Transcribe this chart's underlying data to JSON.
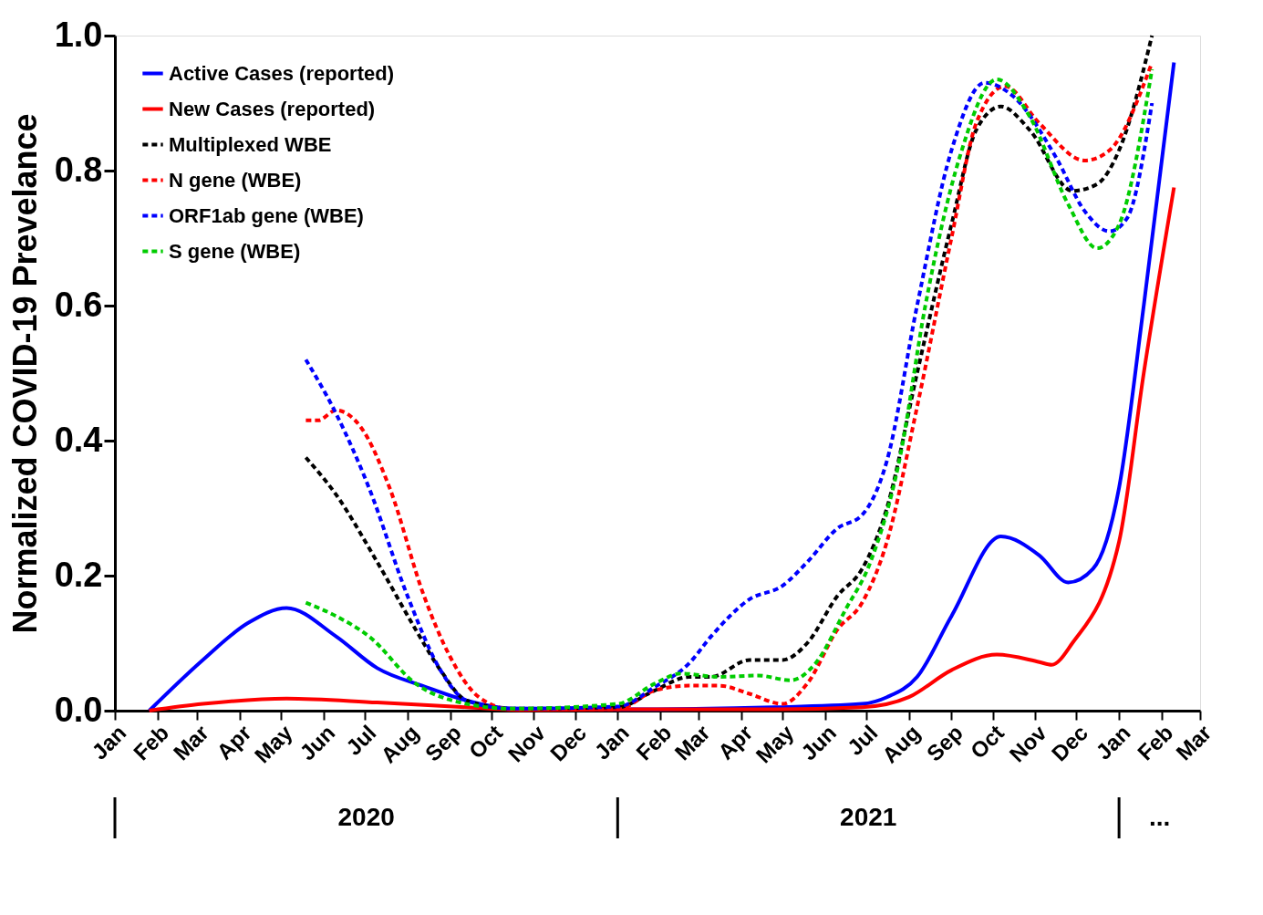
{
  "chart_data": {
    "type": "line",
    "ylabel": "Normalized COVID-19 Prevelance",
    "xlim": [
      "2020-01-01",
      "2022-03-01"
    ],
    "ylim": [
      0,
      1
    ],
    "xticks": [
      {
        "value": "2020-01-01",
        "label": "Jan"
      },
      {
        "value": "2020-02-01",
        "label": "Feb"
      },
      {
        "value": "2020-03-01",
        "label": "Mar"
      },
      {
        "value": "2020-04-01",
        "label": "Apr"
      },
      {
        "value": "2020-05-01",
        "label": "May"
      },
      {
        "value": "2020-06-01",
        "label": "Jun"
      },
      {
        "value": "2020-07-01",
        "label": "Jul"
      },
      {
        "value": "2020-08-01",
        "label": "Aug"
      },
      {
        "value": "2020-09-01",
        "label": "Sep"
      },
      {
        "value": "2020-10-01",
        "label": "Oct"
      },
      {
        "value": "2020-11-01",
        "label": "Nov"
      },
      {
        "value": "2020-12-01",
        "label": "Dec"
      },
      {
        "value": "2021-01-01",
        "label": "Jan"
      },
      {
        "value": "2021-02-01",
        "label": "Feb"
      },
      {
        "value": "2021-03-01",
        "label": "Mar"
      },
      {
        "value": "2021-04-01",
        "label": "Apr"
      },
      {
        "value": "2021-05-01",
        "label": "May"
      },
      {
        "value": "2021-06-01",
        "label": "Jun"
      },
      {
        "value": "2021-07-01",
        "label": "Jul"
      },
      {
        "value": "2021-08-01",
        "label": "Aug"
      },
      {
        "value": "2021-09-01",
        "label": "Sep"
      },
      {
        "value": "2021-10-01",
        "label": "Oct"
      },
      {
        "value": "2021-11-01",
        "label": "Nov"
      },
      {
        "value": "2021-12-01",
        "label": "Dec"
      },
      {
        "value": "2022-01-01",
        "label": "Jan"
      },
      {
        "value": "2022-02-01",
        "label": "Feb"
      },
      {
        "value": "2022-03-01",
        "label": "Mar"
      }
    ],
    "yticks": [
      {
        "value": 0,
        "label": "0.0"
      },
      0.2,
      0.4,
      0.6,
      0.8,
      {
        "value": 1,
        "label": "1.0"
      }
    ],
    "grid": false,
    "legend": "top left",
    "marker": "none",
    "annotations": [
      "2020",
      "2021",
      "..."
    ],
    "series": [
      {
        "name": "Active Cases (reported)",
        "color": "#0000ff",
        "line_style": "solid",
        "x": [
          "2020-01-26",
          "2020-03-05",
          "2020-04-07",
          "2020-05-05",
          "2020-06-10",
          "2020-07-10",
          "2020-08-13",
          "2020-09-13",
          "2020-10-16",
          "2021-01-01",
          "2021-04-25",
          "2021-06-28",
          "2021-07-16",
          "2021-08-07",
          "2021-09-01",
          "2021-10-07",
          "2021-11-04",
          "2021-11-25",
          "2021-12-13",
          "2022-01-01",
          "2022-01-19",
          "2022-02-10"
        ],
        "values": [
          0,
          0.075,
          0.13,
          0.152,
          0.11,
          0.063,
          0.036,
          0.015,
          0.003,
          0.002,
          0.005,
          0.01,
          0.02,
          0.05,
          0.14,
          0.258,
          0.23,
          0.19,
          0.21,
          0.33,
          0.6,
          0.96
        ]
      },
      {
        "name": "New Cases (reported)",
        "color": "#ff0000",
        "line_style": "solid",
        "x": [
          "2020-01-26",
          "2020-03-05",
          "2020-05-05",
          "2020-07-10",
          "2020-09-13",
          "2020-10-28",
          "2021-01-01",
          "2021-04-25",
          "2021-06-28",
          "2021-08-01",
          "2021-09-01",
          "2021-10-04",
          "2021-11-04",
          "2021-11-13",
          "2021-11-28",
          "2022-01-01",
          "2022-01-19",
          "2022-02-10"
        ],
        "values": [
          0,
          0.01,
          0.018,
          0.012,
          0.005,
          0.001,
          0.002,
          0.002,
          0.005,
          0.02,
          0.06,
          0.083,
          0.072,
          0.068,
          0.1,
          0.25,
          0.5,
          0.775
        ]
      },
      {
        "name": "Multiplexed WBE",
        "color": "#000000",
        "line_style": "dashed",
        "x": [
          "2020-05-19",
          "2020-06-10",
          "2020-07-10",
          "2020-08-07",
          "2020-08-25",
          "2020-09-13",
          "2020-10-16",
          "2021-01-01",
          "2021-01-28",
          "2021-02-22",
          "2021-03-10",
          "2021-04-07",
          "2021-05-01",
          "2021-05-19",
          "2021-06-10",
          "2021-06-28",
          "2021-07-16",
          "2021-08-07",
          "2021-09-01",
          "2021-09-19",
          "2021-10-07",
          "2021-10-28",
          "2021-11-28",
          "2021-12-16",
          "2022-01-01",
          "2022-01-25"
        ],
        "values": [
          0.375,
          0.32,
          0.22,
          0.12,
          0.06,
          0.015,
          0.003,
          0.005,
          0.03,
          0.05,
          0.05,
          0.075,
          0.075,
          0.1,
          0.17,
          0.21,
          0.3,
          0.5,
          0.72,
          0.86,
          0.895,
          0.86,
          0.77,
          0.78,
          0.83,
          1.0
        ]
      },
      {
        "name": "N gene (WBE)",
        "color": "#ff0000",
        "line_style": "dashed",
        "x": [
          "2020-05-19",
          "2020-05-28",
          "2020-06-10",
          "2020-06-28",
          "2020-07-19",
          "2020-08-13",
          "2020-09-01",
          "2020-09-22",
          "2020-10-16",
          "2021-01-01",
          "2021-01-28",
          "2021-02-22",
          "2021-03-16",
          "2021-04-07",
          "2021-05-01",
          "2021-05-19",
          "2021-06-10",
          "2021-06-28",
          "2021-07-16",
          "2021-08-07",
          "2021-09-01",
          "2021-09-19",
          "2021-10-10",
          "2021-11-04",
          "2021-12-07",
          "2021-12-25",
          "2022-01-25"
        ],
        "values": [
          0.43,
          0.43,
          0.445,
          0.42,
          0.33,
          0.17,
          0.08,
          0.02,
          0.002,
          0.002,
          0.03,
          0.037,
          0.037,
          0.025,
          0.01,
          0.04,
          0.12,
          0.16,
          0.25,
          0.45,
          0.7,
          0.87,
          0.925,
          0.87,
          0.815,
          0.83,
          0.96
        ]
      },
      {
        "name": "ORF1ab gene (WBE)",
        "color": "#0000ff",
        "line_style": "dashed",
        "x": [
          "2020-05-19",
          "2020-06-10",
          "2020-07-04",
          "2020-08-01",
          "2020-08-25",
          "2020-09-13",
          "2020-10-16",
          "2021-01-01",
          "2021-01-28",
          "2021-02-22",
          "2021-03-10",
          "2021-04-07",
          "2021-05-01",
          "2021-05-19",
          "2021-06-10",
          "2021-06-28",
          "2021-07-16",
          "2021-08-07",
          "2021-09-01",
          "2021-09-25",
          "2021-10-16",
          "2021-11-16",
          "2021-12-07",
          "2021-12-25",
          "2022-01-07",
          "2022-01-25"
        ],
        "values": [
          0.52,
          0.44,
          0.33,
          0.17,
          0.06,
          0.015,
          0.003,
          0.006,
          0.035,
          0.07,
          0.11,
          0.165,
          0.185,
          0.22,
          0.27,
          0.29,
          0.37,
          0.6,
          0.83,
          0.93,
          0.91,
          0.82,
          0.74,
          0.71,
          0.73,
          0.9
        ]
      },
      {
        "name": "S gene (WBE)",
        "color": "#00cc00",
        "line_style": "dashed",
        "x": [
          "2020-05-19",
          "2020-06-10",
          "2020-07-04",
          "2020-08-07",
          "2020-09-13",
          "2020-10-16",
          "2021-01-01",
          "2021-01-28",
          "2021-02-16",
          "2021-03-16",
          "2021-04-13",
          "2021-05-07",
          "2021-05-25",
          "2021-06-16",
          "2021-07-04",
          "2021-07-25",
          "2021-08-13",
          "2021-09-07",
          "2021-10-04",
          "2021-10-28",
          "2021-11-25",
          "2021-12-16",
          "2022-01-01",
          "2022-01-25"
        ],
        "values": [
          0.16,
          0.14,
          0.11,
          0.04,
          0.01,
          0.003,
          0.01,
          0.04,
          0.055,
          0.05,
          0.052,
          0.045,
          0.07,
          0.15,
          0.22,
          0.37,
          0.6,
          0.82,
          0.935,
          0.88,
          0.75,
          0.685,
          0.72,
          0.95
        ]
      }
    ]
  }
}
